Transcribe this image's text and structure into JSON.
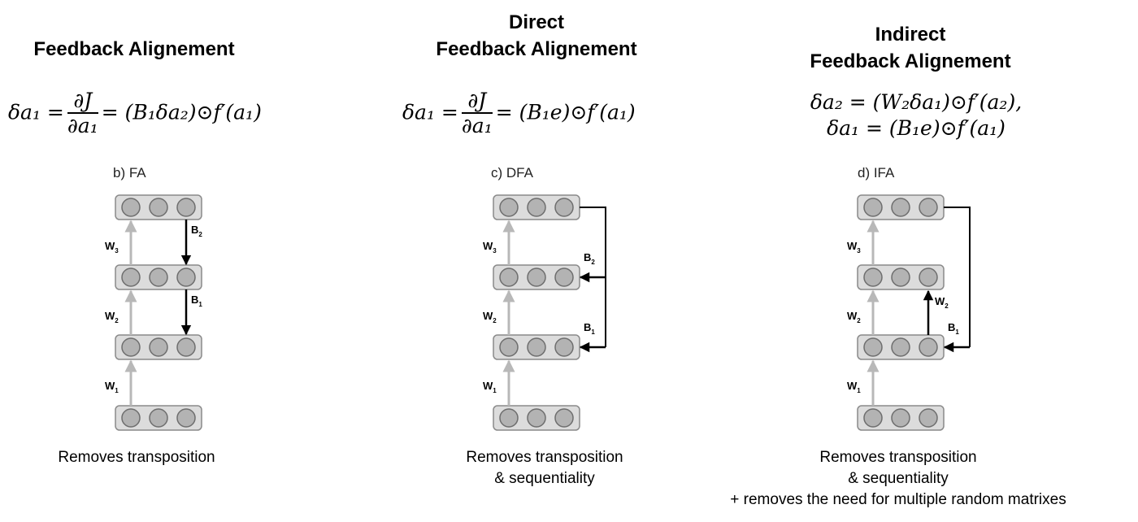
{
  "panels": [
    {
      "id": "fa",
      "title_lines": [
        "Feedback Alignement"
      ],
      "equations": [
        {
          "lhs": "δa₁ =",
          "frac_num": "∂J",
          "frac_den": "∂a₁",
          "rhs": "= (B₁δa₂)⊙f′(a₁)"
        }
      ],
      "label": "b) FA",
      "forward_weights": [
        "W3",
        "W2",
        "W1"
      ],
      "feedback_weights": [
        "B2",
        "B1"
      ],
      "caption_lines": [
        "Removes transposition"
      ]
    },
    {
      "id": "dfa",
      "title_lines": [
        "Direct",
        "Feedback Alignement"
      ],
      "equations": [
        {
          "lhs": "δa₁ =",
          "frac_num": "∂J",
          "frac_den": "∂a₁",
          "rhs": "= (B₁e)⊙f′(a₁)"
        }
      ],
      "label": "c) DFA",
      "forward_weights": [
        "W3",
        "W2",
        "W1"
      ],
      "feedback_weights": [
        "B2",
        "B1"
      ],
      "caption_lines": [
        "Removes transposition",
        "& sequentiality"
      ]
    },
    {
      "id": "ifa",
      "title_lines": [
        "Indirect",
        "Feedback Alignement"
      ],
      "equations": [
        {
          "text": "δa₂ = (W₂δa₁)⊙f′(a₂),"
        },
        {
          "text": "δa₁ = (B₁e)⊙f′(a₁)"
        }
      ],
      "label": "d) IFA",
      "forward_weights": [
        "W3",
        "W2",
        "W1"
      ],
      "feedback_weights": [
        "W2",
        "B1"
      ],
      "caption_lines": [
        "Removes transposition",
        "& sequentiality",
        "+ removes the need for multiple random matrixes"
      ]
    }
  ]
}
